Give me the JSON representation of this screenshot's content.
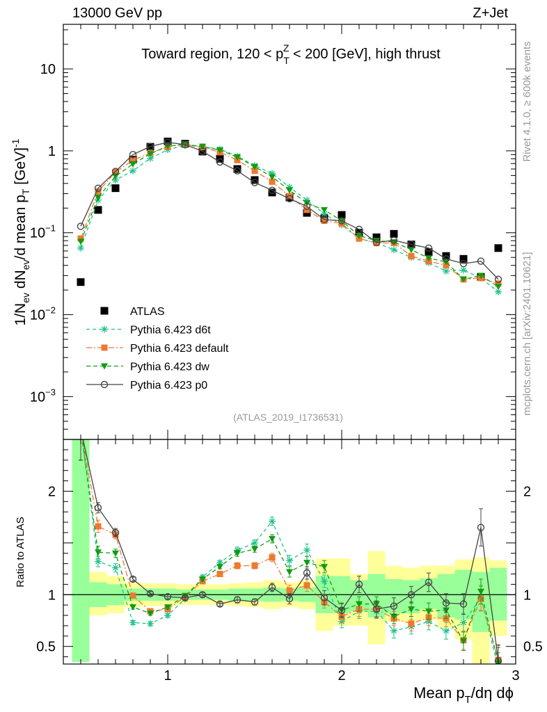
{
  "header": {
    "energy_label": "13000 GeV pp",
    "process_label": "Z+Jet"
  },
  "side_labels": {
    "rivet": "Rivet 4.1.0, ≥ 600k events",
    "mcplots": "mcplots.cern.ch [arXiv:2401.10621]"
  },
  "chart_data": [
    {
      "type": "line",
      "panel": "main",
      "title_parts": [
        "Toward region, 120 < p",
        "T",
        "Z",
        " < 200 [GeV], high thrust"
      ],
      "xlabel": "Mean p_T/dη dφ",
      "ylabel": "1/N_ev dN_ev/d mean p_T [GeV]^-1",
      "yscale": "log",
      "xlim": [
        0.4,
        3.0
      ],
      "ylim": [
        0.0003,
        35
      ],
      "x_ticks": [
        1,
        2,
        3
      ],
      "y_ticks": [
        {
          "value": 10,
          "base": "10",
          "exp": ""
        },
        {
          "value": 1,
          "base": "1",
          "exp": ""
        },
        {
          "value": 0.1,
          "base": "10",
          "exp": "−1"
        },
        {
          "value": 0.01,
          "base": "10",
          "exp": "−2"
        },
        {
          "value": 0.001,
          "base": "10",
          "exp": "−3"
        }
      ],
      "watermark": "(ATLAS_2019_I1736531)",
      "x": [
        0.5,
        0.6,
        0.7,
        0.8,
        0.9,
        1.0,
        1.1,
        1.2,
        1.3,
        1.4,
        1.5,
        1.6,
        1.7,
        1.8,
        1.9,
        2.0,
        2.1,
        2.2,
        2.3,
        2.4,
        2.5,
        2.6,
        2.7,
        2.8,
        2.9
      ],
      "series": [
        {
          "name": "ATLAS",
          "style": "data",
          "color": "#000000",
          "values": [
            0.025,
            0.19,
            0.35,
            0.78,
            1.12,
            1.3,
            1.22,
            0.98,
            0.8,
            0.6,
            0.44,
            0.31,
            0.27,
            0.175,
            0.15,
            0.165,
            0.1,
            0.088,
            0.097,
            0.072,
            0.058,
            0.052,
            0.048,
            0.029,
            0.065
          ]
        },
        {
          "name": "Pythia 6.423 d6t",
          "style": "d6t",
          "color": "#1ec28b",
          "values": [
            0.065,
            0.25,
            0.44,
            0.57,
            0.81,
            1.03,
            1.17,
            1.12,
            1.05,
            0.86,
            0.66,
            0.53,
            0.36,
            0.25,
            0.17,
            0.125,
            0.085,
            0.075,
            0.062,
            0.05,
            0.043,
            0.034,
            0.035,
            0.028,
            0.019
          ]
        },
        {
          "name": "Pythia 6.423 default",
          "style": "default",
          "color": "#f07830",
          "values": [
            0.085,
            0.32,
            0.55,
            0.77,
            0.94,
            1.12,
            1.2,
            1.11,
            0.96,
            0.77,
            0.57,
            0.42,
            0.28,
            0.19,
            0.14,
            0.13,
            0.085,
            0.075,
            0.075,
            0.052,
            0.045,
            0.04,
            0.027,
            0.028,
            0.024
          ]
        },
        {
          "name": "Pythia 6.423 dw",
          "style": "dw",
          "color": "#119c11",
          "values": [
            0.078,
            0.27,
            0.49,
            0.69,
            0.92,
            1.14,
            1.2,
            1.13,
            1.02,
            0.84,
            0.64,
            0.48,
            0.33,
            0.23,
            0.19,
            0.14,
            0.092,
            0.08,
            0.077,
            0.062,
            0.049,
            0.044,
            0.027,
            0.03,
            0.022
          ]
        },
        {
          "name": "Pythia 6.423 p0",
          "style": "p0",
          "color": "#444444",
          "values": [
            0.12,
            0.35,
            0.56,
            0.9,
            1.13,
            1.27,
            1.19,
            0.99,
            0.73,
            0.57,
            0.41,
            0.33,
            0.26,
            0.21,
            0.145,
            0.14,
            0.11,
            0.076,
            0.081,
            0.072,
            0.065,
            0.048,
            0.042,
            0.045,
            0.027
          ]
        }
      ]
    },
    {
      "type": "line",
      "panel": "ratio",
      "ylabel": "Ratio to ATLAS",
      "xlim": [
        0.4,
        3.0
      ],
      "ylim": [
        0.33,
        2.5
      ],
      "x_ticks": [
        1,
        2,
        3
      ],
      "y_ticks": [
        0.5,
        1,
        2
      ],
      "reference_line": 1,
      "bands": [
        {
          "x0": 0.45,
          "x1": 0.55,
          "y_lo": 0.35,
          "y_hi": 2.5,
          "g_lo": 0.35,
          "g_hi": 2.5
        },
        {
          "x0": 0.55,
          "x1": 0.65,
          "y_lo": 0.8,
          "y_hi": 1.22,
          "g_lo": 0.88,
          "g_hi": 1.12
        },
        {
          "x0": 0.65,
          "x1": 0.75,
          "y_lo": 0.82,
          "y_hi": 1.18,
          "g_lo": 0.9,
          "g_hi": 1.1
        },
        {
          "x0": 0.75,
          "x1": 0.85,
          "y_lo": 0.88,
          "y_hi": 1.12,
          "g_lo": 0.94,
          "g_hi": 1.06
        },
        {
          "x0": 0.85,
          "x1": 0.95,
          "y_lo": 0.89,
          "y_hi": 1.11,
          "g_lo": 0.94,
          "g_hi": 1.06
        },
        {
          "x0": 0.95,
          "x1": 1.05,
          "y_lo": 0.89,
          "y_hi": 1.11,
          "g_lo": 0.94,
          "g_hi": 1.06
        },
        {
          "x0": 1.05,
          "x1": 1.15,
          "y_lo": 0.9,
          "y_hi": 1.1,
          "g_lo": 0.95,
          "g_hi": 1.05
        },
        {
          "x0": 1.15,
          "x1": 1.25,
          "y_lo": 0.9,
          "y_hi": 1.1,
          "g_lo": 0.95,
          "g_hi": 1.05
        },
        {
          "x0": 1.25,
          "x1": 1.35,
          "y_lo": 0.9,
          "y_hi": 1.1,
          "g_lo": 0.95,
          "g_hi": 1.05
        },
        {
          "x0": 1.35,
          "x1": 1.45,
          "y_lo": 0.89,
          "y_hi": 1.11,
          "g_lo": 0.94,
          "g_hi": 1.06
        },
        {
          "x0": 1.45,
          "x1": 1.55,
          "y_lo": 0.88,
          "y_hi": 1.12,
          "g_lo": 0.94,
          "g_hi": 1.06
        },
        {
          "x0": 1.55,
          "x1": 1.65,
          "y_lo": 0.86,
          "y_hi": 1.14,
          "g_lo": 0.93,
          "g_hi": 1.07
        },
        {
          "x0": 1.65,
          "x1": 1.75,
          "y_lo": 0.88,
          "y_hi": 1.12,
          "g_lo": 0.94,
          "g_hi": 1.06
        },
        {
          "x0": 1.75,
          "x1": 1.85,
          "y_lo": 0.86,
          "y_hi": 1.14,
          "g_lo": 0.93,
          "g_hi": 1.07
        },
        {
          "x0": 1.85,
          "x1": 1.95,
          "y_lo": 0.65,
          "y_hi": 1.35,
          "g_lo": 0.82,
          "g_hi": 1.18
        },
        {
          "x0": 1.95,
          "x1": 2.05,
          "y_lo": 0.7,
          "y_hi": 1.35,
          "g_lo": 0.82,
          "g_hi": 1.18
        },
        {
          "x0": 2.05,
          "x1": 2.15,
          "y_lo": 0.7,
          "y_hi": 1.2,
          "g_lo": 0.84,
          "g_hi": 1.14
        },
        {
          "x0": 2.15,
          "x1": 2.25,
          "y_lo": 0.52,
          "y_hi": 1.42,
          "g_lo": 0.78,
          "g_hi": 1.2
        },
        {
          "x0": 2.25,
          "x1": 2.35,
          "y_lo": 0.74,
          "y_hi": 1.28,
          "g_lo": 0.82,
          "g_hi": 1.15
        },
        {
          "x0": 2.35,
          "x1": 2.45,
          "y_lo": 0.74,
          "y_hi": 1.26,
          "g_lo": 0.82,
          "g_hi": 1.14
        },
        {
          "x0": 2.45,
          "x1": 2.55,
          "y_lo": 0.76,
          "y_hi": 1.28,
          "g_lo": 0.86,
          "g_hi": 1.16
        },
        {
          "x0": 2.55,
          "x1": 2.65,
          "y_lo": 0.68,
          "y_hi": 1.28,
          "g_lo": 0.78,
          "g_hi": 1.2
        },
        {
          "x0": 2.65,
          "x1": 2.75,
          "y_lo": 0.57,
          "y_hi": 1.34,
          "g_lo": 0.76,
          "g_hi": 1.24
        },
        {
          "x0": 2.75,
          "x1": 2.85,
          "y_lo": 0.33,
          "y_hi": 1.36,
          "g_lo": 0.64,
          "g_hi": 1.22
        },
        {
          "x0": 2.85,
          "x1": 2.95,
          "y_lo": 0.6,
          "y_hi": 1.33,
          "g_lo": 0.75,
          "g_hi": 1.26
        }
      ],
      "series": [
        {
          "name": "Pythia 6.423 d6t",
          "style": "d6t",
          "color": "#1ec28b",
          "values": [
            2.6,
            1.32,
            1.26,
            0.73,
            0.72,
            0.8,
            0.96,
            1.17,
            1.31,
            1.43,
            1.5,
            1.71,
            1.33,
            1.43,
            1.13,
            0.74,
            0.84,
            0.84,
            0.65,
            0.69,
            0.74,
            0.65,
            0.73,
            0.97,
            0.29
          ],
          "errors": [
            0.3,
            0.05,
            0.04,
            0.02,
            0.02,
            0.02,
            0.02,
            0.02,
            0.02,
            0.03,
            0.03,
            0.04,
            0.05,
            0.06,
            0.06,
            0.06,
            0.07,
            0.07,
            0.07,
            0.07,
            0.08,
            0.08,
            0.09,
            0.12,
            0.15
          ]
        },
        {
          "name": "Pythia 6.423 default",
          "style": "default",
          "color": "#f07830",
          "values": [
            2.6,
            1.66,
            1.58,
            0.99,
            0.84,
            0.86,
            0.98,
            1.13,
            1.2,
            1.28,
            1.28,
            1.36,
            1.04,
            1.09,
            0.93,
            0.79,
            0.86,
            0.86,
            0.77,
            0.72,
            0.78,
            0.77,
            0.56,
            0.96,
            0.37
          ],
          "errors": [
            0.3,
            0.06,
            0.04,
            0.02,
            0.02,
            0.02,
            0.02,
            0.02,
            0.02,
            0.03,
            0.03,
            0.04,
            0.05,
            0.06,
            0.06,
            0.06,
            0.07,
            0.07,
            0.07,
            0.07,
            0.08,
            0.08,
            0.09,
            0.12,
            0.15
          ]
        },
        {
          "name": "Pythia 6.423 dw",
          "style": "dw",
          "color": "#119c11",
          "values": [
            2.6,
            1.41,
            1.4,
            0.88,
            0.82,
            0.88,
            0.99,
            1.15,
            1.27,
            1.4,
            1.44,
            1.54,
            1.22,
            1.31,
            1.27,
            0.85,
            0.91,
            0.91,
            0.79,
            0.86,
            0.84,
            0.85,
            0.55,
            1.03,
            0.34
          ],
          "errors": [
            0.3,
            0.06,
            0.04,
            0.02,
            0.02,
            0.02,
            0.02,
            0.02,
            0.02,
            0.03,
            0.03,
            0.04,
            0.05,
            0.06,
            0.06,
            0.06,
            0.07,
            0.07,
            0.07,
            0.07,
            0.08,
            0.08,
            0.09,
            0.12,
            0.15
          ]
        },
        {
          "name": "Pythia 6.423 p0",
          "style": "p0",
          "color": "#444444",
          "values": [
            2.6,
            1.84,
            1.6,
            1.15,
            1.01,
            0.98,
            0.97,
            1.0,
            0.91,
            0.95,
            0.93,
            1.07,
            0.96,
            1.21,
            0.97,
            0.85,
            1.1,
            0.86,
            0.89,
            1.0,
            1.12,
            0.92,
            0.91,
            1.65,
            0.36
          ],
          "errors": [
            0.3,
            0.05,
            0.04,
            0.02,
            0.02,
            0.02,
            0.02,
            0.02,
            0.02,
            0.03,
            0.03,
            0.04,
            0.05,
            0.06,
            0.07,
            0.07,
            0.08,
            0.08,
            0.08,
            0.08,
            0.09,
            0.09,
            0.1,
            0.18,
            0.15
          ]
        }
      ]
    }
  ]
}
